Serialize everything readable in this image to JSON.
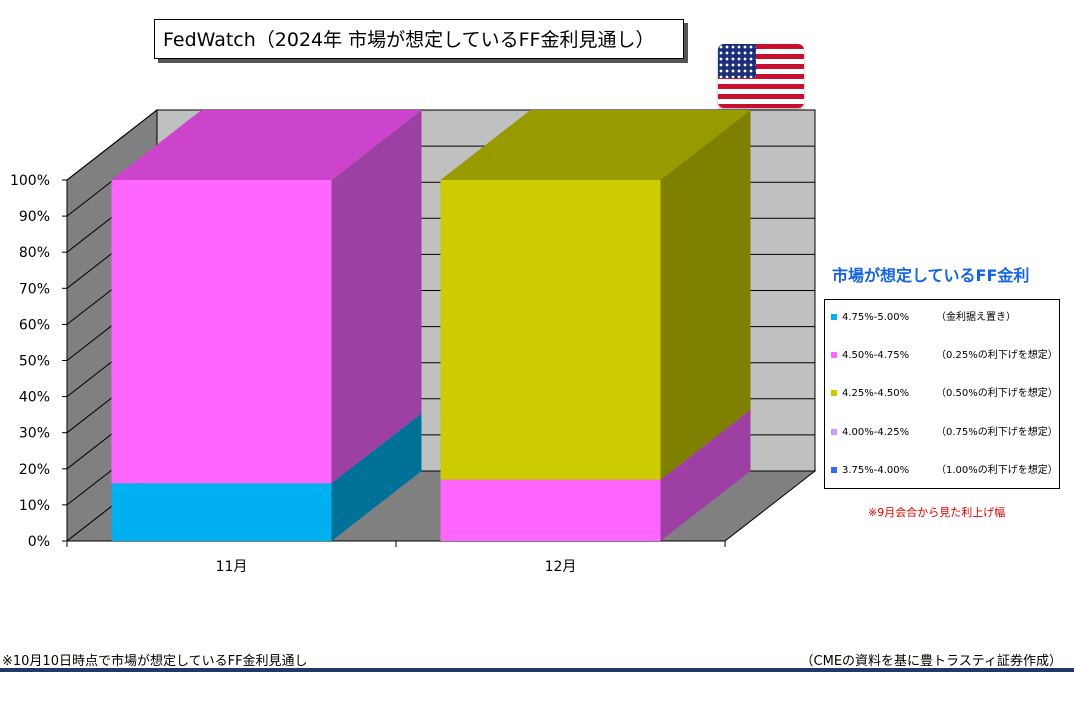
{
  "title": "FedWatch（2024年  市場が想定しているFF金利見通し）",
  "flag_icon": "us-flag-icon",
  "legend": {
    "title": "市場が想定しているFF金利",
    "items": [
      {
        "range": "4.75%-5.00%",
        "desc": "（金利据え置き）",
        "color": "#00b0f0"
      },
      {
        "range": "4.50%-4.75%",
        "desc": "（0.25%の利下げを想定）",
        "color": "#ff66ff"
      },
      {
        "range": "4.25%-4.50%",
        "desc": "（0.50%の利下げを想定）",
        "color": "#cccc00"
      },
      {
        "range": "4.00%-4.25%",
        "desc": "（0.75%の利下げを想定）",
        "color": "#cc99ff"
      },
      {
        "range": "3.75%-4.00%",
        "desc": "（1.00%の利下げを想定）",
        "color": "#3366ff"
      }
    ]
  },
  "note_red": "※9月会合から見た利上げ幅",
  "footnote_left": "※10月10日時点で市場が想定しているFF金利見通し",
  "footnote_right": "（CMEの資料を基に豊トラスティ証券作成）",
  "chart_data": {
    "type": "bar",
    "stacked": true,
    "three_d": true,
    "categories": [
      "11月",
      "12月"
    ],
    "series": [
      {
        "name": "4.75%-5.00%",
        "color": "#00b0f0",
        "top_color": "#0088bb",
        "side_color": "#007199",
        "values": [
          16,
          0
        ]
      },
      {
        "name": "4.50%-4.75%",
        "color": "#ff66ff",
        "top_color": "#cc44cc",
        "side_color": "#9e40a3",
        "values": [
          84,
          17
        ]
      },
      {
        "name": "4.25%-4.50%",
        "color": "#cccc00",
        "top_color": "#999900",
        "side_color": "#808000",
        "values": [
          0,
          83
        ]
      },
      {
        "name": "4.00%-4.25%",
        "color": "#cc99ff",
        "top_color": "#9966cc",
        "side_color": "#7a52a3",
        "values": [
          0,
          0
        ]
      },
      {
        "name": "3.75%-4.00%",
        "color": "#3366ff",
        "top_color": "#2244bb",
        "side_color": "#1a3399",
        "values": [
          0,
          0
        ]
      }
    ],
    "ylim": [
      0,
      100
    ],
    "yticks": [
      "0%",
      "10%",
      "20%",
      "30%",
      "40%",
      "50%",
      "60%",
      "70%",
      "80%",
      "90%",
      "100%"
    ],
    "ytick_values": [
      0,
      10,
      20,
      30,
      40,
      50,
      60,
      70,
      80,
      90,
      100
    ],
    "grid": true
  }
}
